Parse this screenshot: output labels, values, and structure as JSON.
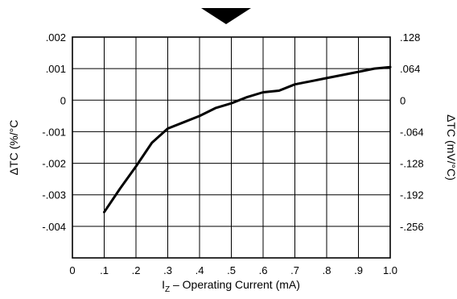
{
  "chart_data": {
    "type": "line",
    "xlabel": "I",
    "xlabel_sub": "Z",
    "xlabel_rest": " – Operating Current (mA)",
    "ylabel_left": "ΔTC (%/°C",
    "ylabel_right": "ΔTC (mV/°C)",
    "xlim": [
      0,
      1.0
    ],
    "ylim": [
      -0.005,
      0.002
    ],
    "grid": true,
    "x_tick_labels": [
      "0",
      ".1",
      ".2",
      ".3",
      ".4",
      ".5",
      ".6",
      ".7",
      ".8",
      ".9",
      "1.0"
    ],
    "y_left_tick_labels": [
      ".002",
      ".001",
      "0",
      "-.001",
      "-.002",
      "-.003",
      "-.004"
    ],
    "y_right_tick_labels": [
      ".128",
      ".064",
      "0",
      "-.064",
      "-.128",
      "-.192",
      "-.256"
    ],
    "series": [
      {
        "x": [
          0.1,
          0.15,
          0.2,
          0.25,
          0.3,
          0.35,
          0.4,
          0.45,
          0.5,
          0.55,
          0.6,
          0.65,
          0.7,
          0.75,
          0.8,
          0.85,
          0.9,
          0.95,
          1.0
        ],
        "y": [
          -0.00355,
          -0.0028,
          -0.0021,
          -0.00135,
          -0.0009,
          -0.0007,
          -0.0005,
          -0.00025,
          -0.0001,
          0.0001,
          0.00025,
          0.0003,
          0.0005,
          0.0006,
          0.0007,
          0.0008,
          0.0009,
          0.001,
          0.00105
        ]
      }
    ]
  }
}
